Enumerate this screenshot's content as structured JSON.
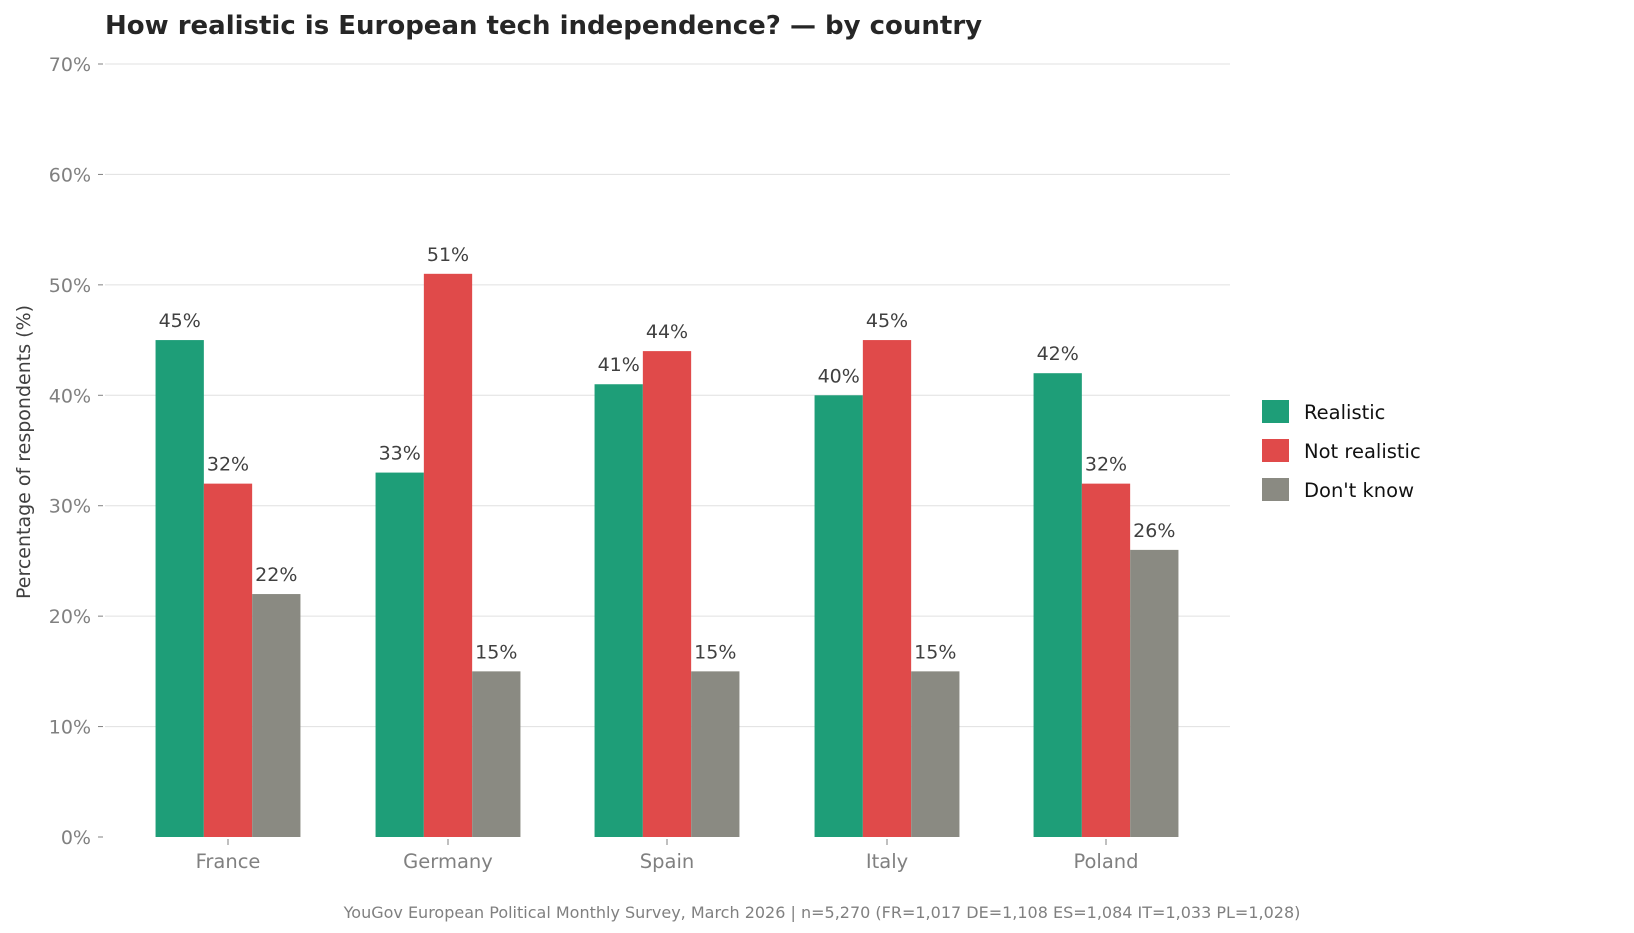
{
  "chart_data": {
    "type": "bar",
    "title": "How realistic is European tech independence? — by country",
    "xlabel": "",
    "ylabel": "Percentage of respondents (%)",
    "ylim": [
      0,
      70
    ],
    "yticks": [
      0,
      10,
      20,
      30,
      40,
      50,
      60,
      70
    ],
    "ytick_labels": [
      "0%",
      "10%",
      "20%",
      "30%",
      "40%",
      "50%",
      "60%",
      "70%"
    ],
    "grid": true,
    "legend_position": "right",
    "categories": [
      "France",
      "Germany",
      "Spain",
      "Italy",
      "Poland"
    ],
    "series": [
      {
        "name": "Realistic",
        "color": "#1e9e78",
        "values": [
          45,
          33,
          41,
          40,
          42
        ],
        "labels": [
          "45%",
          "33%",
          "41%",
          "40%",
          "42%"
        ]
      },
      {
        "name": "Not realistic",
        "color": "#e04a4a",
        "values": [
          32,
          51,
          44,
          45,
          32
        ],
        "labels": [
          "32%",
          "51%",
          "44%",
          "45%",
          "32%"
        ]
      },
      {
        "name": "Don't know",
        "color": "#8a8a82",
        "values": [
          22,
          15,
          15,
          15,
          26
        ],
        "labels": [
          "22%",
          "15%",
          "15%",
          "15%",
          "26%"
        ]
      }
    ],
    "source": "YouGov European Political Monthly Survey, March 2026  |  n=5,270 (FR=1,017  DE=1,108  ES=1,084  IT=1,033  PL=1,028)"
  }
}
